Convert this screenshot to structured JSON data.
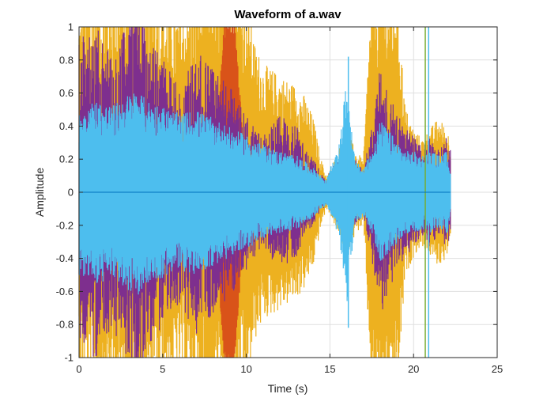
{
  "chart_data": {
    "type": "line",
    "title": "Waveform of a.wav",
    "xlabel": "Time (s)",
    "ylabel": "Amplitude",
    "xlim": [
      0,
      25
    ],
    "ylim": [
      -1,
      1
    ],
    "xticks": [
      0,
      5,
      10,
      15,
      20,
      25
    ],
    "yticks": [
      -1,
      -0.8,
      -0.6,
      -0.4,
      -0.2,
      0,
      0.2,
      0.4,
      0.6,
      0.8,
      1
    ],
    "xtick_labels": [
      "0",
      "5",
      "10",
      "15",
      "20",
      "25"
    ],
    "ytick_labels": [
      "-1",
      "-0.8",
      "-0.6",
      "-0.4",
      "-0.2",
      "0",
      "0.2",
      "0.4",
      "0.6",
      "0.8",
      "1"
    ],
    "grid": true,
    "duration_s": 22.2,
    "series_envelope": {
      "x": [
        0,
        1,
        2,
        3,
        3.5,
        4,
        5,
        6,
        7,
        8,
        8.7,
        9.3,
        10,
        10.5,
        11,
        12,
        13,
        13.5,
        14,
        14.5,
        14.8,
        15,
        15.5,
        16,
        16.5,
        17,
        17.5,
        18,
        18.5,
        19,
        19.5,
        20,
        20.5,
        21,
        21.5,
        22,
        22.2
      ],
      "orange_max": [
        0.85,
        0.95,
        0.95,
        1.0,
        1.0,
        1.0,
        0.9,
        0.85,
        0.95,
        1.0,
        1.0,
        1.0,
        0.95,
        0.7,
        0.6,
        0.55,
        0.5,
        0.45,
        0.35,
        0.15,
        0.08,
        0.1,
        0.2,
        0.3,
        0.2,
        0.15,
        1.0,
        1.0,
        1.0,
        1.0,
        0.4,
        0.3,
        0.25,
        0.3,
        0.35,
        0.3,
        0.25
      ],
      "red_max": [
        0,
        0,
        0,
        0,
        0,
        0,
        0,
        0,
        0,
        0,
        1.0,
        1.0,
        0,
        0,
        0,
        0,
        0,
        0,
        0,
        0,
        0,
        0,
        0,
        0,
        0,
        0,
        0,
        0,
        0,
        0,
        0,
        0,
        0,
        0,
        0,
        0,
        0
      ],
      "purple_max": [
        0.7,
        0.75,
        0.6,
        0.8,
        0.95,
        0.7,
        0.6,
        0.5,
        0.65,
        0.55,
        0.5,
        0.45,
        0.35,
        0.3,
        0.25,
        0.35,
        0.3,
        0.2,
        0.15,
        0.08,
        0.06,
        0.1,
        0.15,
        0.2,
        0.15,
        0.1,
        0.3,
        0.6,
        0.45,
        0.35,
        0.3,
        0.25,
        0.2,
        0.25,
        0.2,
        0.25,
        0.2
      ],
      "blue_max": [
        0.4,
        0.45,
        0.42,
        0.48,
        0.5,
        0.45,
        0.42,
        0.38,
        0.4,
        0.36,
        0.33,
        0.3,
        0.28,
        0.25,
        0.23,
        0.2,
        0.18,
        0.15,
        0.12,
        0.08,
        0.06,
        0.12,
        0.2,
        0.55,
        0.15,
        0.12,
        0.2,
        0.35,
        0.3,
        0.25,
        0.2,
        0.2,
        0.18,
        0.2,
        0.18,
        0.2,
        0.12
      ]
    },
    "spikes": [
      {
        "x": 16.1,
        "y": 0.82,
        "color": "#4DBEEE"
      },
      {
        "x": 20.7,
        "y": 1.0,
        "color": "#77AC30"
      },
      {
        "x": 20.9,
        "y": 1.0,
        "color": "#4DBEEE"
      }
    ],
    "colors": {
      "orange": "#EDB120",
      "red": "#D95319",
      "purple": "#7E2F8E",
      "blue": "#4DBEEE",
      "green": "#77AC30",
      "baseline": "#0072BD",
      "grid": "#dfdfdf",
      "axis": "#262626"
    }
  }
}
